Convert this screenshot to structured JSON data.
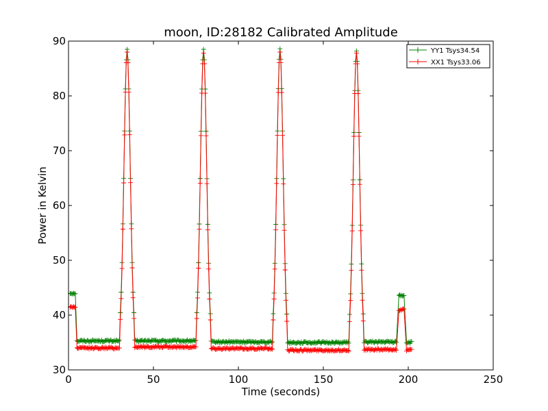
{
  "chart_data": {
    "type": "line",
    "title": "moon, ID:28182 Calibrated Amplitude",
    "xlabel": "Time (seconds)",
    "ylabel": "Power in Kelvin",
    "xlim": [
      0,
      250
    ],
    "ylim": [
      30,
      90
    ],
    "x_ticks": [
      "0",
      "50",
      "100",
      "150",
      "200",
      "250"
    ],
    "y_ticks": [
      "30",
      "40",
      "50",
      "60",
      "70",
      "80",
      "90"
    ],
    "grid": false,
    "legend_position": "top-right",
    "marker": "+",
    "scan_peaks": [
      34.5,
      79.5,
      124.5,
      169.5
    ],
    "series": [
      {
        "name": "YY1 Tsys34.54",
        "color": "#008000",
        "peak_values": [
          88.5,
          88.5,
          88.6,
          88.2
        ],
        "baseline_segments": [
          {
            "x": [
              1,
              4
            ],
            "y": 44.0
          },
          {
            "x": [
              5,
              30
            ],
            "y": 35.3
          },
          {
            "x": [
              39,
              75
            ],
            "y": 35.3
          },
          {
            "x": [
              84,
              120
            ],
            "y": 35.1
          },
          {
            "x": [
              129,
              165
            ],
            "y": 35.0
          },
          {
            "x": [
              174,
              193
            ],
            "y": 35.1
          },
          {
            "x": [
              194.5,
              197.5
            ],
            "y": 43.6
          },
          {
            "x": [
              199,
              202
            ],
            "y": 35.0
          }
        ]
      },
      {
        "name": "XX1 Tsys33.06",
        "color": "#ff0000",
        "peak_values": [
          88.0,
          87.8,
          88.0,
          87.8
        ],
        "baseline_segments": [
          {
            "x": [
              1,
              4
            ],
            "y": 41.5
          },
          {
            "x": [
              5,
              30
            ],
            "y": 34.0
          },
          {
            "x": [
              39,
              75
            ],
            "y": 34.2
          },
          {
            "x": [
              84,
              120
            ],
            "y": 33.9
          },
          {
            "x": [
              129,
              165
            ],
            "y": 33.6
          },
          {
            "x": [
              174,
              193
            ],
            "y": 33.7
          },
          {
            "x": [
              194.5,
              197.5
            ],
            "y": 41.0
          },
          {
            "x": [
              199,
              202
            ],
            "y": 33.6
          }
        ]
      }
    ]
  }
}
